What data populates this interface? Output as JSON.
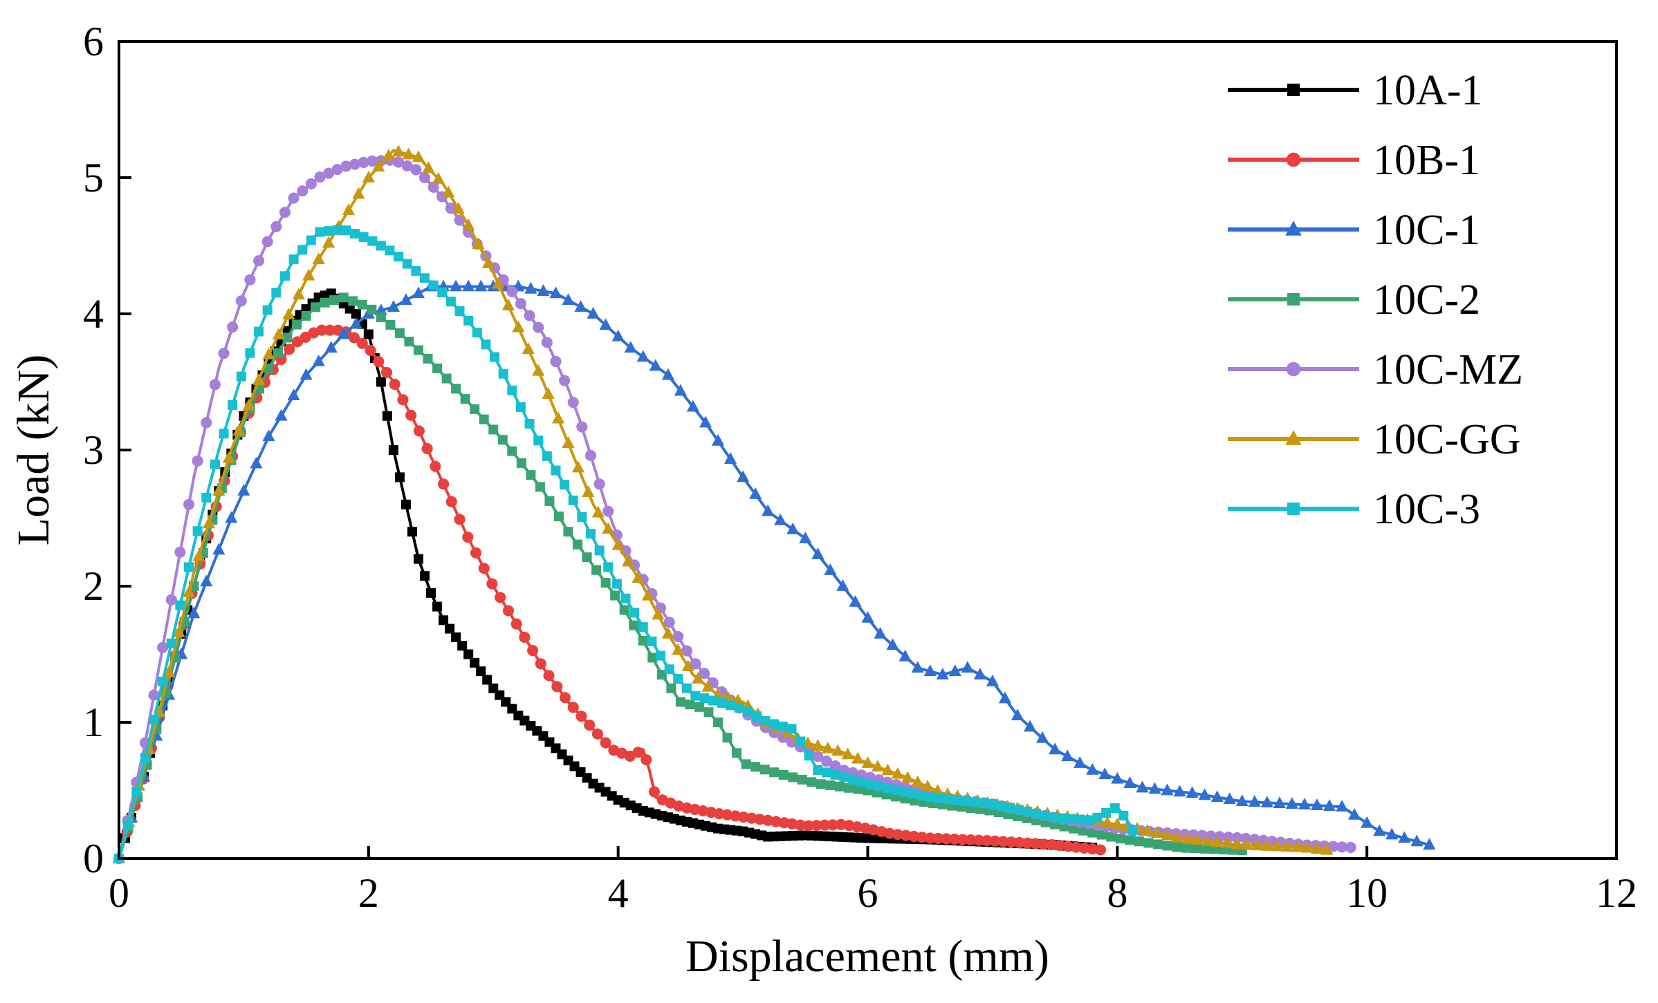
{
  "chart_data": {
    "type": "line",
    "title": "",
    "xlabel": "Displacement (mm)",
    "ylabel": "Load (kN)",
    "xlim": [
      0,
      12
    ],
    "ylim": [
      0,
      6
    ],
    "xticks": [
      0,
      2,
      4,
      6,
      8,
      10,
      12
    ],
    "yticks": [
      0,
      1,
      2,
      3,
      4,
      5,
      6
    ],
    "x_tick_labels": [
      "0",
      "2",
      "4",
      "6",
      "8",
      "10",
      "12"
    ],
    "y_tick_labels": [
      "0",
      "1",
      "2",
      "3",
      "4",
      "5",
      "6"
    ],
    "grid": false,
    "legend_position": "top-right",
    "series": [
      {
        "name": "10A-1",
        "color": "#000000",
        "marker": "square",
        "marker_step": 0.05,
        "points": [
          [
            0,
            0
          ],
          [
            0.2,
            0.6
          ],
          [
            0.4,
            1.3
          ],
          [
            0.6,
            2.0
          ],
          [
            0.8,
            2.7
          ],
          [
            1.0,
            3.25
          ],
          [
            1.2,
            3.65
          ],
          [
            1.4,
            3.95
          ],
          [
            1.6,
            4.12
          ],
          [
            1.7,
            4.15
          ],
          [
            1.9,
            4.0
          ],
          [
            2.0,
            3.85
          ],
          [
            2.1,
            3.5
          ],
          [
            2.2,
            3.0
          ],
          [
            2.3,
            2.6
          ],
          [
            2.4,
            2.2
          ],
          [
            2.5,
            1.95
          ],
          [
            2.6,
            1.75
          ],
          [
            2.8,
            1.5
          ],
          [
            3.0,
            1.25
          ],
          [
            3.2,
            1.05
          ],
          [
            3.4,
            0.9
          ],
          [
            3.6,
            0.72
          ],
          [
            3.8,
            0.55
          ],
          [
            4.0,
            0.43
          ],
          [
            4.2,
            0.35
          ],
          [
            4.5,
            0.28
          ],
          [
            4.8,
            0.22
          ],
          [
            5.0,
            0.2
          ],
          [
            5.2,
            0.16
          ],
          [
            5.5,
            0.17
          ],
          [
            6.0,
            0.15
          ],
          [
            6.5,
            0.14
          ],
          [
            7.0,
            0.12
          ],
          [
            7.5,
            0.1
          ],
          [
            7.8,
            0.08
          ]
        ]
      },
      {
        "name": "10B-1",
        "color": "#e8403c",
        "marker": "circle",
        "marker_step": 0.065,
        "points": [
          [
            0,
            0
          ],
          [
            0.2,
            0.6
          ],
          [
            0.4,
            1.3
          ],
          [
            0.6,
            2.0
          ],
          [
            0.8,
            2.65
          ],
          [
            1.0,
            3.2
          ],
          [
            1.2,
            3.55
          ],
          [
            1.4,
            3.78
          ],
          [
            1.6,
            3.88
          ],
          [
            1.8,
            3.88
          ],
          [
            2.0,
            3.75
          ],
          [
            2.2,
            3.5
          ],
          [
            2.4,
            3.15
          ],
          [
            2.6,
            2.75
          ],
          [
            2.8,
            2.35
          ],
          [
            3.0,
            2.0
          ],
          [
            3.2,
            1.7
          ],
          [
            3.4,
            1.4
          ],
          [
            3.6,
            1.15
          ],
          [
            3.8,
            0.95
          ],
          [
            3.95,
            0.8
          ],
          [
            4.1,
            0.75
          ],
          [
            4.2,
            0.8
          ],
          [
            4.25,
            0.65
          ],
          [
            4.3,
            0.45
          ],
          [
            4.5,
            0.38
          ],
          [
            4.8,
            0.33
          ],
          [
            5.2,
            0.28
          ],
          [
            5.5,
            0.24
          ],
          [
            5.8,
            0.25
          ],
          [
            6.0,
            0.22
          ],
          [
            6.2,
            0.18
          ],
          [
            6.5,
            0.15
          ],
          [
            7.0,
            0.13
          ],
          [
            7.5,
            0.1
          ],
          [
            7.9,
            0.06
          ]
        ]
      },
      {
        "name": "10C-1",
        "color": "#2f6fd3",
        "marker": "triangle",
        "marker_step": 0.1,
        "points": [
          [
            0,
            0
          ],
          [
            0.3,
            0.9
          ],
          [
            0.6,
            1.8
          ],
          [
            0.9,
            2.5
          ],
          [
            1.2,
            3.1
          ],
          [
            1.5,
            3.55
          ],
          [
            1.8,
            3.85
          ],
          [
            2.0,
            4.0
          ],
          [
            2.2,
            4.05
          ],
          [
            2.5,
            4.2
          ],
          [
            2.8,
            4.2
          ],
          [
            3.2,
            4.2
          ],
          [
            3.5,
            4.15
          ],
          [
            3.8,
            4.0
          ],
          [
            4.1,
            3.75
          ],
          [
            4.4,
            3.55
          ],
          [
            4.7,
            3.2
          ],
          [
            5.0,
            2.8
          ],
          [
            5.2,
            2.55
          ],
          [
            5.5,
            2.35
          ],
          [
            5.8,
            2.0
          ],
          [
            6.1,
            1.65
          ],
          [
            6.4,
            1.4
          ],
          [
            6.6,
            1.35
          ],
          [
            6.8,
            1.4
          ],
          [
            7.0,
            1.3
          ],
          [
            7.2,
            1.05
          ],
          [
            7.5,
            0.8
          ],
          [
            7.8,
            0.65
          ],
          [
            8.2,
            0.52
          ],
          [
            8.6,
            0.48
          ],
          [
            9.0,
            0.42
          ],
          [
            9.4,
            0.4
          ],
          [
            9.8,
            0.38
          ],
          [
            10.1,
            0.2
          ],
          [
            10.5,
            0.1
          ]
        ]
      },
      {
        "name": "10C-2",
        "color": "#3aa372",
        "marker": "square",
        "marker_step": 0.075,
        "points": [
          [
            0,
            0
          ],
          [
            0.2,
            0.6
          ],
          [
            0.4,
            1.3
          ],
          [
            0.6,
            2.0
          ],
          [
            0.8,
            2.65
          ],
          [
            1.0,
            3.2
          ],
          [
            1.2,
            3.6
          ],
          [
            1.4,
            3.9
          ],
          [
            1.6,
            4.07
          ],
          [
            1.8,
            4.12
          ],
          [
            2.0,
            4.05
          ],
          [
            2.2,
            3.9
          ],
          [
            2.5,
            3.65
          ],
          [
            2.8,
            3.35
          ],
          [
            3.1,
            3.05
          ],
          [
            3.4,
            2.7
          ],
          [
            3.6,
            2.4
          ],
          [
            3.8,
            2.15
          ],
          [
            4.0,
            1.9
          ],
          [
            4.2,
            1.6
          ],
          [
            4.35,
            1.35
          ],
          [
            4.5,
            1.15
          ],
          [
            4.7,
            1.1
          ],
          [
            4.8,
            1.0
          ],
          [
            4.9,
            0.85
          ],
          [
            5.0,
            0.7
          ],
          [
            5.3,
            0.62
          ],
          [
            5.6,
            0.55
          ],
          [
            6.0,
            0.5
          ],
          [
            6.4,
            0.42
          ],
          [
            7.0,
            0.35
          ],
          [
            7.5,
            0.25
          ],
          [
            8.0,
            0.15
          ],
          [
            8.5,
            0.08
          ],
          [
            9.0,
            0.06
          ]
        ]
      },
      {
        "name": "10C-MZ",
        "color": "#a57fd9",
        "marker": "circle",
        "marker_step": 0.07,
        "points": [
          [
            0,
            0
          ],
          [
            0.2,
            0.8
          ],
          [
            0.4,
            1.8
          ],
          [
            0.6,
            2.8
          ],
          [
            0.8,
            3.6
          ],
          [
            1.0,
            4.15
          ],
          [
            1.2,
            4.55
          ],
          [
            1.4,
            4.85
          ],
          [
            1.6,
            5.0
          ],
          [
            1.8,
            5.08
          ],
          [
            2.0,
            5.12
          ],
          [
            2.2,
            5.13
          ],
          [
            2.4,
            5.05
          ],
          [
            2.6,
            4.85
          ],
          [
            2.8,
            4.6
          ],
          [
            3.0,
            4.35
          ],
          [
            3.2,
            4.1
          ],
          [
            3.4,
            3.85
          ],
          [
            3.6,
            3.45
          ],
          [
            3.7,
            3.2
          ],
          [
            3.8,
            2.9
          ],
          [
            3.9,
            2.6
          ],
          [
            4.0,
            2.35
          ],
          [
            4.2,
            2.05
          ],
          [
            4.4,
            1.75
          ],
          [
            4.6,
            1.45
          ],
          [
            4.8,
            1.25
          ],
          [
            5.0,
            1.08
          ],
          [
            5.2,
            0.95
          ],
          [
            5.5,
            0.8
          ],
          [
            5.8,
            0.65
          ],
          [
            6.2,
            0.55
          ],
          [
            6.6,
            0.45
          ],
          [
            7.0,
            0.4
          ],
          [
            7.5,
            0.3
          ],
          [
            8.0,
            0.22
          ],
          [
            8.5,
            0.18
          ],
          [
            9.0,
            0.15
          ],
          [
            9.5,
            0.1
          ],
          [
            9.9,
            0.08
          ]
        ]
      },
      {
        "name": "10C-GG",
        "color": "#c8970f",
        "marker": "triangle",
        "marker_step": 0.08,
        "points": [
          [
            0,
            0
          ],
          [
            0.3,
            1.0
          ],
          [
            0.6,
            2.1
          ],
          [
            0.9,
            3.0
          ],
          [
            1.2,
            3.7
          ],
          [
            1.5,
            4.25
          ],
          [
            1.8,
            4.7
          ],
          [
            2.0,
            5.0
          ],
          [
            2.2,
            5.2
          ],
          [
            2.4,
            5.15
          ],
          [
            2.6,
            4.95
          ],
          [
            2.8,
            4.65
          ],
          [
            3.0,
            4.3
          ],
          [
            3.2,
            3.9
          ],
          [
            3.4,
            3.5
          ],
          [
            3.6,
            3.05
          ],
          [
            3.8,
            2.6
          ],
          [
            4.0,
            2.3
          ],
          [
            4.2,
            2.0
          ],
          [
            4.4,
            1.65
          ],
          [
            4.6,
            1.35
          ],
          [
            4.8,
            1.2
          ],
          [
            5.0,
            1.15
          ],
          [
            5.2,
            1.0
          ],
          [
            5.5,
            0.85
          ],
          [
            5.8,
            0.78
          ],
          [
            6.0,
            0.7
          ],
          [
            6.3,
            0.6
          ],
          [
            6.6,
            0.48
          ],
          [
            7.0,
            0.4
          ],
          [
            7.5,
            0.32
          ],
          [
            8.0,
            0.25
          ],
          [
            8.5,
            0.15
          ],
          [
            9.0,
            0.1
          ],
          [
            9.5,
            0.08
          ],
          [
            9.7,
            0.06
          ]
        ]
      },
      {
        "name": "10C-3",
        "color": "#17bfcf",
        "marker": "square",
        "marker_step": 0.07,
        "points": [
          [
            0,
            0
          ],
          [
            0.2,
            0.7
          ],
          [
            0.4,
            1.5
          ],
          [
            0.6,
            2.3
          ],
          [
            0.8,
            3.0
          ],
          [
            1.0,
            3.6
          ],
          [
            1.2,
            4.05
          ],
          [
            1.4,
            4.4
          ],
          [
            1.6,
            4.6
          ],
          [
            1.8,
            4.62
          ],
          [
            2.0,
            4.55
          ],
          [
            2.2,
            4.45
          ],
          [
            2.4,
            4.3
          ],
          [
            2.6,
            4.15
          ],
          [
            2.8,
            3.95
          ],
          [
            3.0,
            3.7
          ],
          [
            3.2,
            3.35
          ],
          [
            3.4,
            3.0
          ],
          [
            3.6,
            2.7
          ],
          [
            3.8,
            2.35
          ],
          [
            4.0,
            2.0
          ],
          [
            4.2,
            1.7
          ],
          [
            4.4,
            1.4
          ],
          [
            4.6,
            1.2
          ],
          [
            4.8,
            1.15
          ],
          [
            5.0,
            1.1
          ],
          [
            5.2,
            1.0
          ],
          [
            5.4,
            0.95
          ],
          [
            5.5,
            0.8
          ],
          [
            5.6,
            0.65
          ],
          [
            6.0,
            0.55
          ],
          [
            6.5,
            0.45
          ],
          [
            7.0,
            0.4
          ],
          [
            7.5,
            0.3
          ],
          [
            7.8,
            0.28
          ],
          [
            8.0,
            0.38
          ],
          [
            8.1,
            0.25
          ],
          [
            8.15,
            0.15
          ]
        ]
      }
    ]
  }
}
